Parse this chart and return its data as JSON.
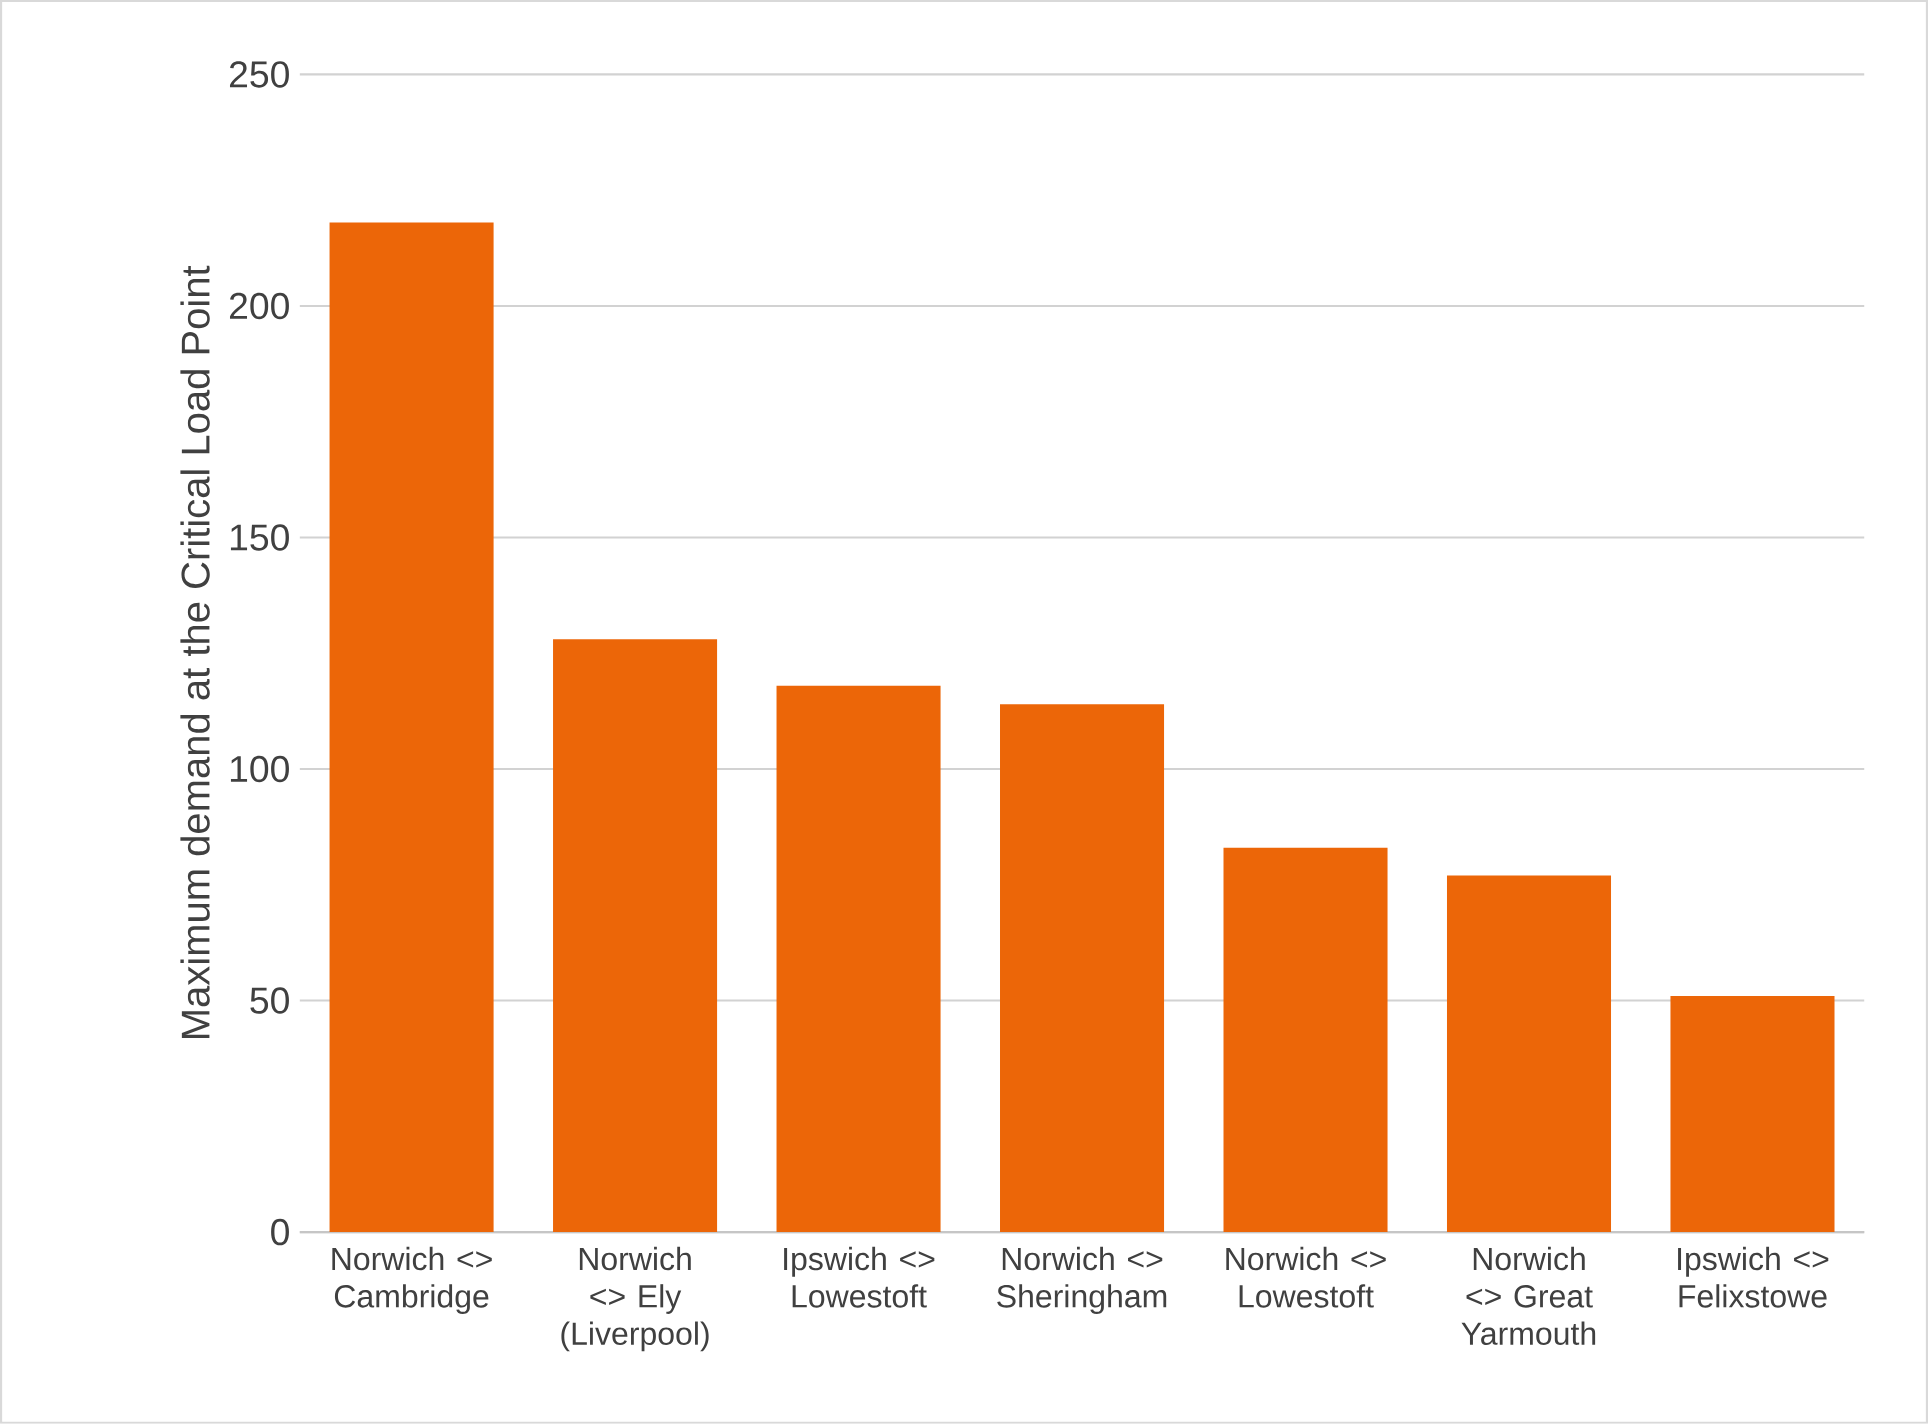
{
  "chart_data": {
    "type": "bar",
    "ylabel": "Maximum demand at the Critical Load Point",
    "categories": [
      "Norwich <> Cambridge",
      "Norwich <> Ely (Liverpool)",
      "Ipswich <> Lowestoft",
      "Norwich <> Sheringham",
      "Norwich <> Lowestoft",
      "Norwich <> Great Yarmouth",
      "Ipswich <> Felixstowe"
    ],
    "values": [
      218,
      128,
      118,
      114,
      83,
      77,
      51
    ],
    "color": "#ec6608",
    "ylim": [
      0,
      250
    ],
    "yticks": [
      0,
      50,
      100,
      150,
      200,
      250
    ],
    "grid": "y"
  }
}
